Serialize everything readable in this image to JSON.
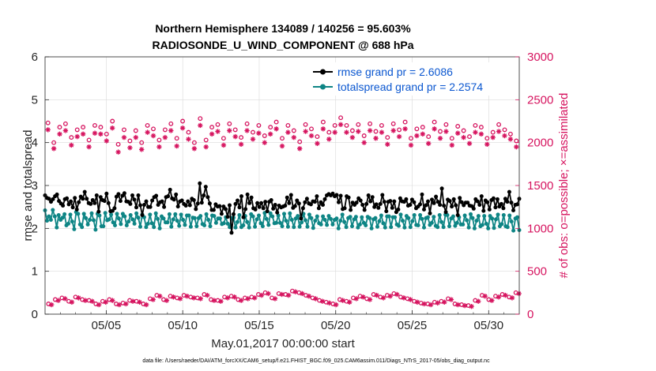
{
  "chart_data": {
    "type": "line",
    "title": "Northern Hemisphere 134089 / 140256 = 95.603%",
    "subtitle": "RADIOSONDE_U_WIND_COMPONENT @ 688 hPa",
    "xlabel": "May.01,2017 00:00:00 start",
    "ylabel": "rmse and totalspread",
    "ylabel_right": "# of obs: o=possible; ×=assimilated",
    "footer": "data file: /Users/raeder/DAI/ATM_forcXX/CAM6_setup/f.e21.FHIST_BGC.f09_025.CAM6assim.011/Diags_NTrS_2017-05/obs_diag_output.nc",
    "xlim": [
      1,
      32
    ],
    "ylim": [
      0,
      6
    ],
    "ylim_right": [
      0,
      3000
    ],
    "x_ticks": [
      5,
      10,
      15,
      20,
      25,
      30
    ],
    "x_tick_labels": [
      "05/05",
      "05/10",
      "05/15",
      "05/20",
      "05/25",
      "05/30"
    ],
    "y_ticks": [
      0,
      1,
      2,
      3,
      4,
      5,
      6
    ],
    "y_tick_labels": [
      "0",
      "1",
      "2",
      "3",
      "4",
      "5",
      "6"
    ],
    "y_right_ticks": [
      0,
      500,
      1000,
      1500,
      2000,
      2500,
      3000
    ],
    "y_right_tick_labels": [
      "0",
      "500",
      "1000",
      "1500",
      "2000",
      "2500",
      "3000"
    ],
    "legend": [
      "rmse grand pr = 2.6086",
      "totalspread grand pr = 2.2574"
    ],
    "legend_position": "top-right",
    "grid": true,
    "colors": {
      "rmse": "#000000",
      "spread": "#0e8585",
      "obs": "#d6145f",
      "legend_text": "#0b57d0"
    },
    "rmse": [
      2.77,
      2.71,
      2.69,
      2.62,
      2.68,
      2.75,
      2.79,
      2.64,
      2.58,
      2.53,
      2.68,
      2.7,
      2.56,
      2.63,
      2.49,
      2.71,
      2.44,
      2.61,
      2.74,
      2.69,
      2.85,
      2.69,
      2.59,
      2.57,
      2.66,
      2.59,
      2.77,
      2.39,
      2.73,
      2.66,
      2.64,
      2.81,
      2.59,
      2.4,
      2.41,
      2.47,
      2.74,
      2.8,
      2.64,
      2.76,
      2.82,
      2.63,
      2.62,
      2.57,
      2.77,
      2.67,
      2.49,
      2.77,
      2.54,
      2.31,
      2.55,
      2.63,
      2.5,
      2.5,
      2.65,
      2.73,
      2.76,
      2.55,
      2.61,
      2.63,
      2.5,
      2.73,
      2.75,
      2.9,
      2.7,
      2.67,
      2.79,
      2.51,
      2.63,
      2.65,
      2.57,
      2.53,
      2.63,
      2.54,
      2.69,
      2.66,
      2.45,
      2.58,
      3.05,
      2.6,
      2.77,
      2.97,
      2.73,
      2.58,
      2.43,
      2.43,
      2.56,
      2.51,
      2.52,
      2.34,
      2.51,
      2.45,
      2.27,
      2.54,
      1.9,
      2.33,
      2.57,
      2.65,
      2.49,
      2.75,
      2.26,
      2.45,
      2.79,
      2.59,
      2.72,
      2.47,
      2.44,
      2.59,
      2.5,
      2.59,
      2.47,
      2.62,
      2.4,
      2.62,
      2.66,
      2.46,
      2.55,
      2.37,
      2.53,
      2.49,
      2.51,
      2.53,
      2.72,
      2.59,
      2.78,
      2.48,
      2.52,
      2.65,
      2.58,
      2.23,
      2.47,
      2.61,
      2.69,
      2.58,
      2.56,
      2.63,
      2.62,
      2.75,
      2.47,
      2.61,
      2.55,
      2.68,
      2.77,
      2.8,
      2.77,
      2.81,
      2.75,
      2.78,
      2.61,
      2.76,
      2.45,
      2.47,
      2.75,
      2.72,
      2.43,
      2.6,
      2.55,
      2.6,
      2.7,
      2.65,
      2.55,
      2.43,
      2.57,
      2.77,
      2.63,
      2.73,
      2.5,
      2.56,
      2.48,
      2.57,
      2.78,
      2.62,
      2.4,
      2.62,
      2.64,
      2.48,
      2.63,
      2.38,
      2.44,
      2.7,
      2.63,
      2.62,
      2.68,
      2.53,
      2.55,
      2.67,
      2.61,
      2.47,
      2.51,
      2.56,
      2.79,
      2.44,
      2.54,
      2.63,
      2.35,
      2.67,
      2.59,
      2.74,
      2.62,
      2.55,
      2.93,
      2.53,
      2.38,
      2.67,
      2.64,
      2.51,
      2.68,
      2.54,
      2.31,
      2.71,
      2.61,
      2.54,
      2.6,
      2.6,
      2.53,
      2.52,
      2.46,
      2.68,
      2.63,
      2.55,
      2.75,
      2.41,
      2.65,
      2.61,
      2.44,
      2.66,
      2.7,
      2.49,
      2.68,
      2.51,
      2.57,
      2.47,
      2.69,
      2.62,
      2.85,
      2.6,
      2.42,
      2.55,
      2.56,
      2.69
    ],
    "spread": [
      2.42,
      2.18,
      2.28,
      2.2,
      2.43,
      2.28,
      2.02,
      2.31,
      2.2,
      2.25,
      2.33,
      2.07,
      2.11,
      2.32,
      2.16,
      1.98,
      2.38,
      2.34,
      2.09,
      2.03,
      2.34,
      2.24,
      2.09,
      2.2,
      2.35,
      2.19,
      1.97,
      2.34,
      2.3,
      2.05,
      2.05,
      2.36,
      2.19,
      2.21,
      2.32,
      2.14,
      2.07,
      2.34,
      2.23,
      2.1,
      2.34,
      2.28,
      2.07,
      2.16,
      2.31,
      2.21,
      2.11,
      2.35,
      2.25,
      2.04,
      2.32,
      2.26,
      2.03,
      2.11,
      2.32,
      2.12,
      2.03,
      2.35,
      2.22,
      2.0,
      2.28,
      2.23,
      2.14,
      2.14,
      2.33,
      2.04,
      2.21,
      2.33,
      2.18,
      2.06,
      2.32,
      2.2,
      2.08,
      2.3,
      2.3,
      2.04,
      2.25,
      2.24,
      2.05,
      2.24,
      2.29,
      2.1,
      2.07,
      2.33,
      2.2,
      2.05,
      2.3,
      2.29,
      2.13,
      2.23,
      2.23,
      2.1,
      2.12,
      2.26,
      2.11,
      2.03,
      2.24,
      2.25,
      2.02,
      2.15,
      2.31,
      2.03,
      2.07,
      2.29,
      2.15,
      2.02,
      2.33,
      2.28,
      2.04,
      2.21,
      2.3,
      2.12,
      2.05,
      2.36,
      2.22,
      2.08,
      2.35,
      2.28,
      2.12,
      2.13,
      2.3,
      2.13,
      2.05,
      2.34,
      2.18,
      2.04,
      2.35,
      2.2,
      2.03,
      2.23,
      2.29,
      2.04,
      2.14,
      2.34,
      2.19,
      2.04,
      2.32,
      2.24,
      2.01,
      2.18,
      2.28,
      2.12,
      2.09,
      2.28,
      2.2,
      2.08,
      2.29,
      2.22,
      2.09,
      2.2,
      2.23,
      2.0,
      2.18,
      2.32,
      2.15,
      2.03,
      2.24,
      2.27,
      2.05,
      2.21,
      2.27,
      2.02,
      2.09,
      2.26,
      2.13,
      2.07,
      2.27,
      2.24,
      2.0,
      2.21,
      2.24,
      2.04,
      2.17,
      2.3,
      2.12,
      2.02,
      2.28,
      2.28,
      2.03,
      2.26,
      2.26,
      2.09,
      2.06,
      2.32,
      2.18,
      2.02,
      2.29,
      2.24,
      2.03,
      2.17,
      2.31,
      2.08,
      2.07,
      2.31,
      2.22,
      2.02,
      2.24,
      2.26,
      2.08,
      2.13,
      2.27,
      2.06,
      2.03,
      2.31,
      2.15,
      2.03,
      2.32,
      2.31,
      2.05,
      2.23,
      2.28,
      2.06,
      2.13,
      2.26,
      2.09,
      2.09,
      2.3,
      2.19,
      2.02,
      2.33,
      2.24,
      2.0,
      2.18,
      2.29,
      2.05,
      2.08,
      2.29,
      2.11,
      2.0,
      2.29,
      2.23,
      2.01,
      2.21,
      2.32,
      2.05,
      2.1,
      2.31,
      2.05,
      2.03,
      2.3,
      2.16,
      1.95,
      2.23,
      2.26,
      1.96
    ],
    "obs_possible": [
      2230,
      2000,
      2180,
      2220,
      2060,
      2150,
      2180,
      2030,
      2200,
      2180,
      2100,
      2250,
      1980,
      2150,
      2020,
      2140,
      2000,
      2200,
      2160,
      2030,
      2150,
      2220,
      2050,
      2250,
      2120,
      2000,
      2280,
      2030,
      2180,
      2210,
      2050,
      2220,
      2150,
      2060,
      2220,
      2120,
      2200,
      2080,
      2180,
      2240,
      2050,
      2200,
      2140,
      2010,
      2210,
      2160,
      2070,
      2240,
      2120,
      2200,
      2290,
      2200,
      2140,
      2210,
      2080,
      2220,
      2130,
      2200,
      2060,
      2220,
      2150,
      2240,
      2050,
      2160,
      2180,
      2070,
      2240,
      2130,
      2210,
      2050,
      2190,
      2140,
      2070,
      2200,
      2180,
      2050,
      2120,
      2210,
      2150,
      2100,
      2020
    ],
    "obs_assimilated": [
      2150,
      1930,
      2100,
      2140,
      1970,
      2070,
      2100,
      1950,
      2110,
      2100,
      2020,
      2170,
      1890,
      2060,
      1940,
      2060,
      1920,
      2120,
      2080,
      1950,
      2060,
      2140,
      1960,
      2170,
      2040,
      1930,
      2200,
      1950,
      2100,
      2130,
      1970,
      2140,
      2070,
      1980,
      2140,
      2040,
      2110,
      2000,
      2100,
      2160,
      1960,
      2120,
      2060,
      1930,
      2130,
      2080,
      1990,
      2160,
      2040,
      2120,
      2210,
      2120,
      2060,
      2130,
      2000,
      2140,
      2050,
      2120,
      1980,
      2140,
      2070,
      2160,
      1970,
      2080,
      2100,
      1990,
      2160,
      2050,
      2130,
      1970,
      2110,
      2060,
      1990,
      2120,
      2100,
      1980,
      2060,
      2130,
      2080,
      2040,
      1950
    ],
    "obs_small_possible": [
      120,
      170,
      190,
      150,
      200,
      170,
      160,
      120,
      150,
      170,
      120,
      130,
      160,
      150,
      120,
      180,
      220,
      170,
      210,
      190,
      220,
      200,
      190,
      230,
      170,
      160,
      200,
      210,
      170,
      190,
      200,
      230,
      250,
      190,
      240,
      230,
      270,
      250,
      220,
      190,
      160,
      140,
      120,
      170,
      150,
      190,
      210,
      180,
      230,
      200,
      220,
      240,
      200,
      180,
      150,
      130,
      120,
      140,
      150,
      180,
      120,
      110,
      100,
      160,
      220,
      170,
      210,
      230,
      200,
      250
    ],
    "obs_small_assimilated": [
      110,
      160,
      180,
      140,
      190,
      160,
      150,
      110,
      140,
      160,
      110,
      120,
      150,
      140,
      110,
      170,
      210,
      160,
      200,
      180,
      210,
      190,
      180,
      220,
      160,
      150,
      190,
      200,
      160,
      180,
      190,
      220,
      240,
      180,
      230,
      220,
      260,
      240,
      210,
      180,
      150,
      130,
      110,
      160,
      140,
      180,
      200,
      170,
      220,
      190,
      210,
      230,
      190,
      170,
      140,
      120,
      110,
      130,
      140,
      170,
      110,
      100,
      90,
      150,
      210,
      160,
      200,
      220,
      190,
      240
    ]
  }
}
